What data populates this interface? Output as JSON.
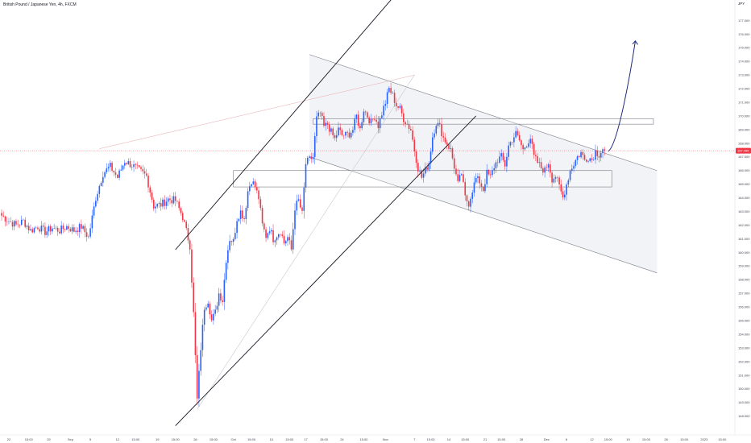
{
  "header": {
    "title": "British Pound / Japanese Yen, 4h, FXCM",
    "currency": "JPY"
  },
  "colors": {
    "up": "#2962ff",
    "down": "#f23645",
    "line": "#131722",
    "gray_line": "#b2b5be",
    "channel_fill": "#f0f1f4",
    "price_line": "#f23645"
  },
  "price_badge": "167.455",
  "chart_data": {
    "type": "candlestick",
    "title": "",
    "xlabel": "",
    "ylabel": "",
    "ylim": [
      146.8,
      178.5
    ],
    "y_ticks": [
      148.0,
      149.0,
      150.0,
      151.0,
      152.0,
      153.0,
      154.0,
      155.0,
      156.0,
      157.0,
      158.0,
      159.0,
      160.0,
      161.0,
      162.0,
      163.0,
      164.0,
      165.0,
      166.0,
      167.0,
      168.0,
      169.0,
      170.0,
      171.0,
      172.0,
      173.0,
      174.0,
      175.0,
      176.0,
      177.0
    ],
    "y_tick_labels": [
      "148.000",
      "149.000",
      "150.000",
      "151.000",
      "152.000",
      "153.000",
      "154.000",
      "155.000",
      "156.000",
      "157.000",
      "158.000",
      "159.000",
      "160.000",
      "161.000",
      "162.000",
      "163.000",
      "164.000",
      "165.000",
      "166.000",
      "167.000",
      "168.000",
      "169.000",
      "170.000",
      "171.000",
      "172.000",
      "173.000",
      "174.000",
      "175.000",
      "176.000",
      "177.000"
    ],
    "x_ticks": [
      {
        "label": "22",
        "bar": 4
      },
      {
        "label": "15:00",
        "bar": 15
      },
      {
        "label": "29",
        "bar": 26
      },
      {
        "label": "Sep",
        "bar": 38
      },
      {
        "label": "5",
        "bar": 49
      },
      {
        "label": "12",
        "bar": 64
      },
      {
        "label": "15:00",
        "bar": 74
      },
      {
        "label": "19",
        "bar": 86
      },
      {
        "label": "15:00",
        "bar": 96
      },
      {
        "label": "26",
        "bar": 107
      },
      {
        "label": "15:00",
        "bar": 117
      },
      {
        "label": "Oct",
        "bar": 128
      },
      {
        "label": "15:00",
        "bar": 138
      },
      {
        "label": "10",
        "bar": 149
      },
      {
        "label": "15:00",
        "bar": 159
      },
      {
        "label": "17",
        "bar": 168
      },
      {
        "label": "15:00",
        "bar": 178
      },
      {
        "label": "24",
        "bar": 188
      },
      {
        "label": "15:00",
        "bar": 200
      },
      {
        "label": "Nov",
        "bar": 212
      },
      {
        "label": "7",
        "bar": 228
      },
      {
        "label": "15:00",
        "bar": 237
      },
      {
        "label": "14",
        "bar": 247
      },
      {
        "label": "15:00",
        "bar": 256
      },
      {
        "label": "21",
        "bar": 267
      },
      {
        "label": "15:00",
        "bar": 276
      },
      {
        "label": "28",
        "bar": 287
      },
      {
        "label": "Dec",
        "bar": 301
      },
      {
        "label": "6",
        "bar": 312
      },
      {
        "label": "12",
        "bar": 326
      },
      {
        "label": "15:00",
        "bar": 335
      },
      {
        "label": "19",
        "bar": 346
      },
      {
        "label": "15:00",
        "bar": 356
      },
      {
        "label": "26",
        "bar": 367
      },
      {
        "label": "15:00",
        "bar": 377
      },
      {
        "label": "2023",
        "bar": 388
      },
      {
        "label": "15:00",
        "bar": 398
      }
    ],
    "last_price": 167.455,
    "anchors": [
      {
        "bar": 0,
        "price": 162.7
      },
      {
        "bar": 4,
        "price": 162.3
      },
      {
        "bar": 8,
        "price": 162.0
      },
      {
        "bar": 12,
        "price": 162.3
      },
      {
        "bar": 16,
        "price": 161.6
      },
      {
        "bar": 20,
        "price": 161.9
      },
      {
        "bar": 24,
        "price": 161.5
      },
      {
        "bar": 28,
        "price": 161.8
      },
      {
        "bar": 32,
        "price": 161.6
      },
      {
        "bar": 36,
        "price": 161.9
      },
      {
        "bar": 40,
        "price": 161.6
      },
      {
        "bar": 44,
        "price": 161.9
      },
      {
        "bar": 48,
        "price": 161.1
      },
      {
        "bar": 52,
        "price": 164.0
      },
      {
        "bar": 56,
        "price": 165.8
      },
      {
        "bar": 60,
        "price": 166.3
      },
      {
        "bar": 64,
        "price": 165.5
      },
      {
        "bar": 68,
        "price": 166.7
      },
      {
        "bar": 72,
        "price": 166.4
      },
      {
        "bar": 76,
        "price": 166.0
      },
      {
        "bar": 80,
        "price": 165.6
      },
      {
        "bar": 84,
        "price": 163.4
      },
      {
        "bar": 88,
        "price": 163.5
      },
      {
        "bar": 92,
        "price": 163.9
      },
      {
        "bar": 96,
        "price": 163.8
      },
      {
        "bar": 100,
        "price": 162.6
      },
      {
        "bar": 104,
        "price": 160.5
      },
      {
        "bar": 106,
        "price": 155.5
      },
      {
        "bar": 108,
        "price": 149.2
      },
      {
        "bar": 110,
        "price": 153.0
      },
      {
        "bar": 112,
        "price": 156.0
      },
      {
        "bar": 114,
        "price": 156.5
      },
      {
        "bar": 116,
        "price": 155.0
      },
      {
        "bar": 118,
        "price": 155.6
      },
      {
        "bar": 120,
        "price": 157.0
      },
      {
        "bar": 122,
        "price": 156.5
      },
      {
        "bar": 124,
        "price": 159.5
      },
      {
        "bar": 126,
        "price": 161.0
      },
      {
        "bar": 128,
        "price": 160.8
      },
      {
        "bar": 130,
        "price": 162.5
      },
      {
        "bar": 132,
        "price": 163.0
      },
      {
        "bar": 134,
        "price": 162.5
      },
      {
        "bar": 136,
        "price": 164.5
      },
      {
        "bar": 138,
        "price": 165.3
      },
      {
        "bar": 140,
        "price": 164.8
      },
      {
        "bar": 142,
        "price": 164.0
      },
      {
        "bar": 144,
        "price": 162.0
      },
      {
        "bar": 146,
        "price": 161.2
      },
      {
        "bar": 148,
        "price": 161.8
      },
      {
        "bar": 150,
        "price": 161.0
      },
      {
        "bar": 152,
        "price": 161.3
      },
      {
        "bar": 154,
        "price": 161.6
      },
      {
        "bar": 156,
        "price": 160.7
      },
      {
        "bar": 158,
        "price": 161.1
      },
      {
        "bar": 160,
        "price": 160.2
      },
      {
        "bar": 162,
        "price": 163.3
      },
      {
        "bar": 164,
        "price": 163.8
      },
      {
        "bar": 166,
        "price": 162.8
      },
      {
        "bar": 168,
        "price": 166.5
      },
      {
        "bar": 170,
        "price": 166.8
      },
      {
        "bar": 172,
        "price": 167.0
      },
      {
        "bar": 174,
        "price": 169.8
      },
      {
        "bar": 176,
        "price": 170.2
      },
      {
        "bar": 178,
        "price": 169.2
      },
      {
        "bar": 180,
        "price": 169.4
      },
      {
        "bar": 182,
        "price": 168.8
      },
      {
        "bar": 184,
        "price": 168.3
      },
      {
        "bar": 186,
        "price": 169.0
      },
      {
        "bar": 188,
        "price": 168.6
      },
      {
        "bar": 190,
        "price": 168.6
      },
      {
        "bar": 192,
        "price": 168.7
      },
      {
        "bar": 194,
        "price": 169.0
      },
      {
        "bar": 196,
        "price": 170.0
      },
      {
        "bar": 198,
        "price": 169.0
      },
      {
        "bar": 200,
        "price": 170.5
      },
      {
        "bar": 202,
        "price": 170.0
      },
      {
        "bar": 204,
        "price": 169.5
      },
      {
        "bar": 206,
        "price": 170.0
      },
      {
        "bar": 208,
        "price": 169.3
      },
      {
        "bar": 210,
        "price": 170.2
      },
      {
        "bar": 212,
        "price": 171.0
      },
      {
        "bar": 214,
        "price": 172.0
      },
      {
        "bar": 216,
        "price": 171.5
      },
      {
        "bar": 218,
        "price": 170.8
      },
      {
        "bar": 220,
        "price": 170.5
      },
      {
        "bar": 222,
        "price": 169.8
      },
      {
        "bar": 224,
        "price": 169.4
      },
      {
        "bar": 226,
        "price": 169.0
      },
      {
        "bar": 228,
        "price": 167.5
      },
      {
        "bar": 230,
        "price": 166.2
      },
      {
        "bar": 232,
        "price": 165.5
      },
      {
        "bar": 234,
        "price": 166.0
      },
      {
        "bar": 236,
        "price": 166.6
      },
      {
        "bar": 238,
        "price": 168.5
      },
      {
        "bar": 240,
        "price": 169.5
      },
      {
        "bar": 242,
        "price": 169.2
      },
      {
        "bar": 244,
        "price": 168.4
      },
      {
        "bar": 246,
        "price": 168.0
      },
      {
        "bar": 248,
        "price": 167.5
      },
      {
        "bar": 250,
        "price": 166.3
      },
      {
        "bar": 252,
        "price": 165.0
      },
      {
        "bar": 254,
        "price": 165.8
      },
      {
        "bar": 256,
        "price": 164.0
      },
      {
        "bar": 258,
        "price": 163.6
      },
      {
        "bar": 260,
        "price": 164.6
      },
      {
        "bar": 262,
        "price": 165.4
      },
      {
        "bar": 264,
        "price": 165.2
      },
      {
        "bar": 266,
        "price": 164.6
      },
      {
        "bar": 268,
        "price": 165.8
      },
      {
        "bar": 270,
        "price": 165.5
      },
      {
        "bar": 272,
        "price": 166.3
      },
      {
        "bar": 274,
        "price": 166.8
      },
      {
        "bar": 276,
        "price": 167.0
      },
      {
        "bar": 278,
        "price": 166.4
      },
      {
        "bar": 280,
        "price": 167.8
      },
      {
        "bar": 282,
        "price": 168.3
      },
      {
        "bar": 284,
        "price": 168.7
      },
      {
        "bar": 286,
        "price": 168.2
      },
      {
        "bar": 288,
        "price": 167.5
      },
      {
        "bar": 290,
        "price": 168.0
      },
      {
        "bar": 292,
        "price": 168.4
      },
      {
        "bar": 294,
        "price": 167.0
      },
      {
        "bar": 296,
        "price": 166.6
      },
      {
        "bar": 298,
        "price": 166.2
      },
      {
        "bar": 300,
        "price": 166.0
      },
      {
        "bar": 302,
        "price": 166.6
      },
      {
        "bar": 304,
        "price": 165.4
      },
      {
        "bar": 306,
        "price": 165.6
      },
      {
        "bar": 308,
        "price": 164.8
      },
      {
        "bar": 310,
        "price": 164.0
      },
      {
        "bar": 312,
        "price": 165.0
      },
      {
        "bar": 314,
        "price": 166.0
      },
      {
        "bar": 316,
        "price": 166.5
      },
      {
        "bar": 318,
        "price": 167.0
      },
      {
        "bar": 320,
        "price": 167.3
      },
      {
        "bar": 322,
        "price": 166.8
      },
      {
        "bar": 324,
        "price": 167.0
      },
      {
        "bar": 326,
        "price": 166.8
      },
      {
        "bar": 328,
        "price": 167.4
      },
      {
        "bar": 330,
        "price": 167.2
      },
      {
        "bar": 332,
        "price": 167.6
      },
      {
        "bar": 333,
        "price": 167.455
      }
    ],
    "annotations": {
      "channel_upper": [
        {
          "bar": 170,
          "price": 174.5
        },
        {
          "bar": 362,
          "price": 166.0
        }
      ],
      "channel_lower": [
        {
          "bar": 170,
          "price": 167.0
        },
        {
          "bar": 362,
          "price": 158.5
        }
      ],
      "ascending_channel_upper": [
        {
          "bar": 96,
          "price": 160.2
        },
        {
          "bar": 228,
          "price": 180.5
        }
      ],
      "ascending_channel_lower": [
        {
          "bar": 96,
          "price": 147.3
        },
        {
          "bar": 262,
          "price": 170.0
        }
      ],
      "gray_trend_diagonal": [
        {
          "bar": 108,
          "price": 148.5
        },
        {
          "bar": 228,
          "price": 173.0
        }
      ],
      "gray_trend_top": [
        {
          "bar": 54,
          "price": 167.6
        },
        {
          "bar": 228,
          "price": 173.0
        }
      ],
      "zone_high": {
        "from_bar": 172,
        "to_bar": 360,
        "top": 169.8,
        "bottom": 169.4
      },
      "zone_mid": {
        "from_bar": 128,
        "to_bar": 337,
        "top": 166.0,
        "bottom": 164.8
      },
      "projection": [
        {
          "bar": 335,
          "price": 167.4
        },
        {
          "bar": 350,
          "price": 175.5
        }
      ]
    }
  }
}
